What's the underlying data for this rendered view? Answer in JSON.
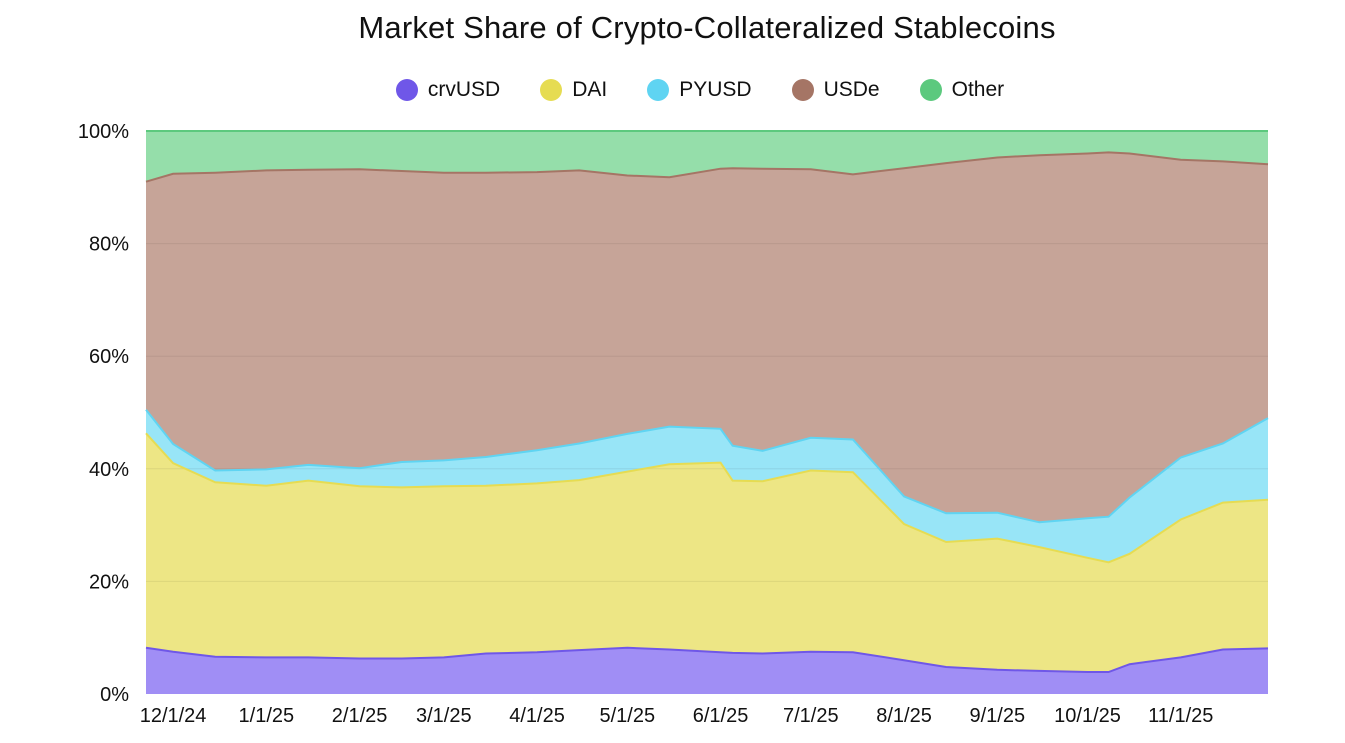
{
  "chart_data": {
    "type": "area",
    "stacked": true,
    "normalized_percent": true,
    "title": "Market Share of Crypto-Collateralized Stablecoins",
    "xlabel": "",
    "ylabel": "",
    "ylim": [
      0,
      100
    ],
    "legend_position": "top-center",
    "grid": true,
    "x_ticks": [
      "12/1/24",
      "1/1/25",
      "2/1/25",
      "3/1/25",
      "4/1/25",
      "5/1/25",
      "6/1/25",
      "7/1/25",
      "8/1/25",
      "9/1/25",
      "10/1/25",
      "11/1/25"
    ],
    "y_ticks": [
      "0%",
      "20%",
      "40%",
      "60%",
      "80%",
      "100%"
    ],
    "x": [
      "2024-11-22",
      "2024-12-01",
      "2024-12-15",
      "2025-01-01",
      "2025-01-15",
      "2025-02-01",
      "2025-02-15",
      "2025-03-01",
      "2025-03-15",
      "2025-04-01",
      "2025-04-15",
      "2025-05-01",
      "2025-05-15",
      "2025-06-01",
      "2025-06-05",
      "2025-06-15",
      "2025-07-01",
      "2025-07-15",
      "2025-08-01",
      "2025-08-15",
      "2025-09-01",
      "2025-09-15",
      "2025-10-01",
      "2025-10-08",
      "2025-10-15",
      "2025-11-01",
      "2025-11-15",
      "2025-11-30"
    ],
    "series": [
      {
        "name": "crvUSD",
        "color": "#6f57e8",
        "fill": "#a08ef5",
        "values": [
          8.2,
          7.5,
          6.6,
          6.5,
          6.5,
          6.3,
          6.3,
          6.5,
          7.2,
          7.4,
          7.8,
          8.2,
          7.9,
          7.4,
          7.3,
          7.2,
          7.5,
          7.4,
          6.0,
          4.8,
          4.3,
          4.1,
          3.9,
          3.9,
          5.3,
          6.5,
          7.9,
          8.1
        ]
      },
      {
        "name": "DAI",
        "color": "#e6dc52",
        "fill": "#ede685",
        "values": [
          38.1,
          33.5,
          31.0,
          30.5,
          31.4,
          30.6,
          30.4,
          30.4,
          29.8,
          30.0,
          30.2,
          31.3,
          32.9,
          33.7,
          30.6,
          30.6,
          32.2,
          32.0,
          24.2,
          22.2,
          23.3,
          22.0,
          20.3,
          19.5,
          19.6,
          24.5,
          26.1,
          26.4
        ]
      },
      {
        "name": "PYUSD",
        "color": "#5fd4f2",
        "fill": "#98e5f7",
        "values": [
          4.2,
          3.4,
          2.1,
          2.9,
          2.8,
          3.2,
          4.5,
          4.6,
          5.1,
          5.9,
          6.5,
          6.7,
          6.7,
          6.0,
          6.2,
          5.4,
          5.8,
          5.8,
          4.9,
          5.1,
          4.6,
          4.4,
          7.0,
          8.1,
          10.0,
          11.0,
          10.5,
          14.5
        ]
      },
      {
        "name": "USDe",
        "color": "#a57565",
        "fill": "#c6a498",
        "values": [
          40.5,
          48.0,
          52.9,
          53.1,
          52.4,
          53.1,
          51.7,
          51.1,
          50.5,
          49.4,
          48.5,
          45.9,
          44.3,
          46.2,
          49.3,
          50.1,
          47.7,
          47.1,
          58.3,
          62.2,
          63.1,
          65.2,
          64.8,
          64.7,
          61.1,
          52.9,
          50.1,
          45.1
        ]
      },
      {
        "name": "Other",
        "color": "#5cc97e",
        "fill": "#95deaa",
        "values": [
          9.0,
          7.6,
          7.4,
          7.0,
          6.9,
          6.8,
          7.1,
          7.4,
          7.4,
          7.3,
          7.0,
          7.9,
          8.2,
          6.7,
          6.6,
          6.7,
          6.8,
          7.7,
          6.6,
          5.7,
          4.7,
          4.3,
          4.0,
          3.8,
          4.0,
          5.1,
          5.4,
          5.9
        ]
      }
    ]
  }
}
